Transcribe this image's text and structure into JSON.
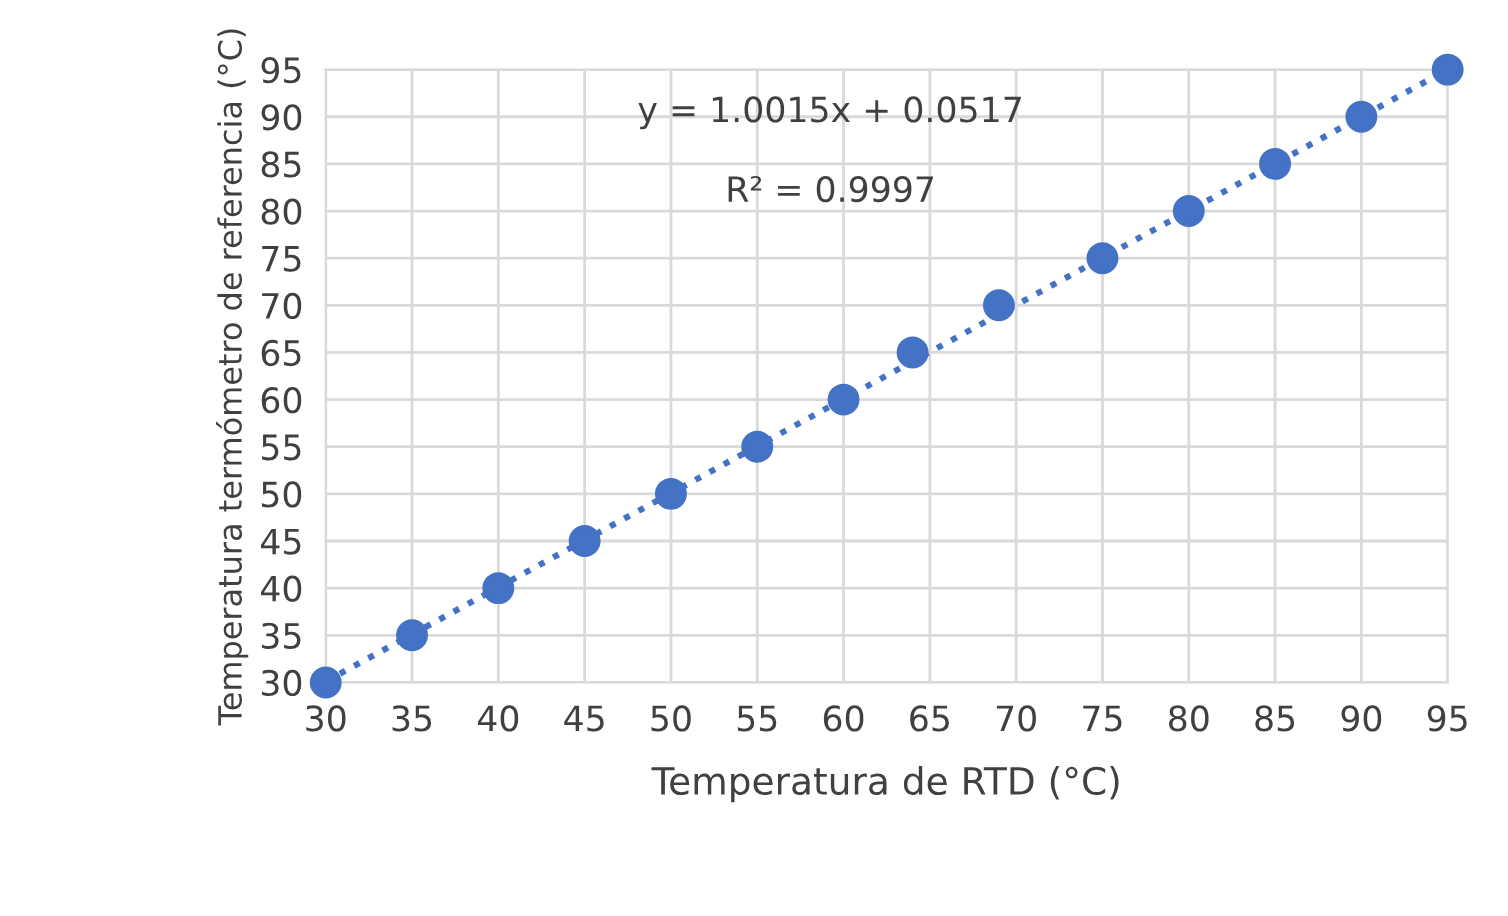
{
  "chart_data": {
    "type": "scatter",
    "xlabel": "Temperatura de RTD (°C)",
    "ylabel": "Temperatura termómetro de referencia (°C)",
    "annotations": [
      "y = 1.0015x + 0.0517",
      "R² = 0.9997"
    ],
    "series": [
      {
        "color": "#4472c4",
        "marker": "circle",
        "x": [
          30,
          35,
          40,
          45,
          50,
          55,
          60,
          64,
          69,
          75,
          80,
          85,
          90,
          95
        ],
        "values": [
          30,
          35,
          40,
          45,
          50,
          55,
          60,
          65,
          70,
          75,
          80,
          85,
          90,
          95
        ]
      },
      {
        "type": "line",
        "color": "#4472c4",
        "line_style": "dotted",
        "x": [
          30,
          95
        ],
        "values": [
          30.1,
          95
        ]
      }
    ],
    "xlim": [
      30,
      95
    ],
    "ylim": [
      30,
      95
    ],
    "xticks": [
      30,
      35,
      40,
      45,
      50,
      55,
      60,
      65,
      70,
      75,
      80,
      85,
      90,
      95
    ],
    "yticks": [
      30,
      35,
      40,
      45,
      50,
      55,
      60,
      65,
      70,
      75,
      80,
      85,
      90,
      95
    ],
    "grid": true,
    "legend": false
  }
}
